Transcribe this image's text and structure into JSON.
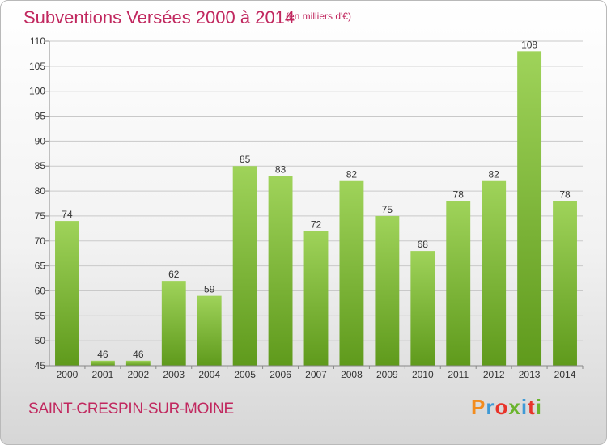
{
  "header": {
    "title": "Subventions Versées 2000 à 2014",
    "subtitle": "(en milliers d'€)"
  },
  "footer": {
    "commune": "SAINT-CRESPIN-SUR-MOINE",
    "logo": "Proxiti",
    "logo_colors": [
      "#f28c1e",
      "#3f9ad6",
      "#e8342a",
      "#6ab42d",
      "#3f9ad6",
      "#e8342a",
      "#6ab42d"
    ]
  },
  "chart_data": {
    "type": "bar",
    "title": "Subventions Versées 2000 à 2014",
    "subtitle": "(en milliers d'€)",
    "categories": [
      "2000",
      "2001",
      "2002",
      "2003",
      "2004",
      "2005",
      "2006",
      "2007",
      "2008",
      "2009",
      "2010",
      "2011",
      "2012",
      "2013",
      "2014"
    ],
    "values": [
      74,
      46,
      46,
      62,
      59,
      85,
      83,
      72,
      82,
      75,
      68,
      78,
      82,
      108,
      78
    ],
    "ylim": [
      45,
      110
    ],
    "yticks": [
      45,
      50,
      55,
      60,
      65,
      70,
      75,
      80,
      85,
      90,
      95,
      100,
      105,
      110
    ],
    "grid": true,
    "bar_color_top": "#9fd35a",
    "bar_color_bottom": "#5f9a1c",
    "grid_color": "#c9c9c9"
  }
}
